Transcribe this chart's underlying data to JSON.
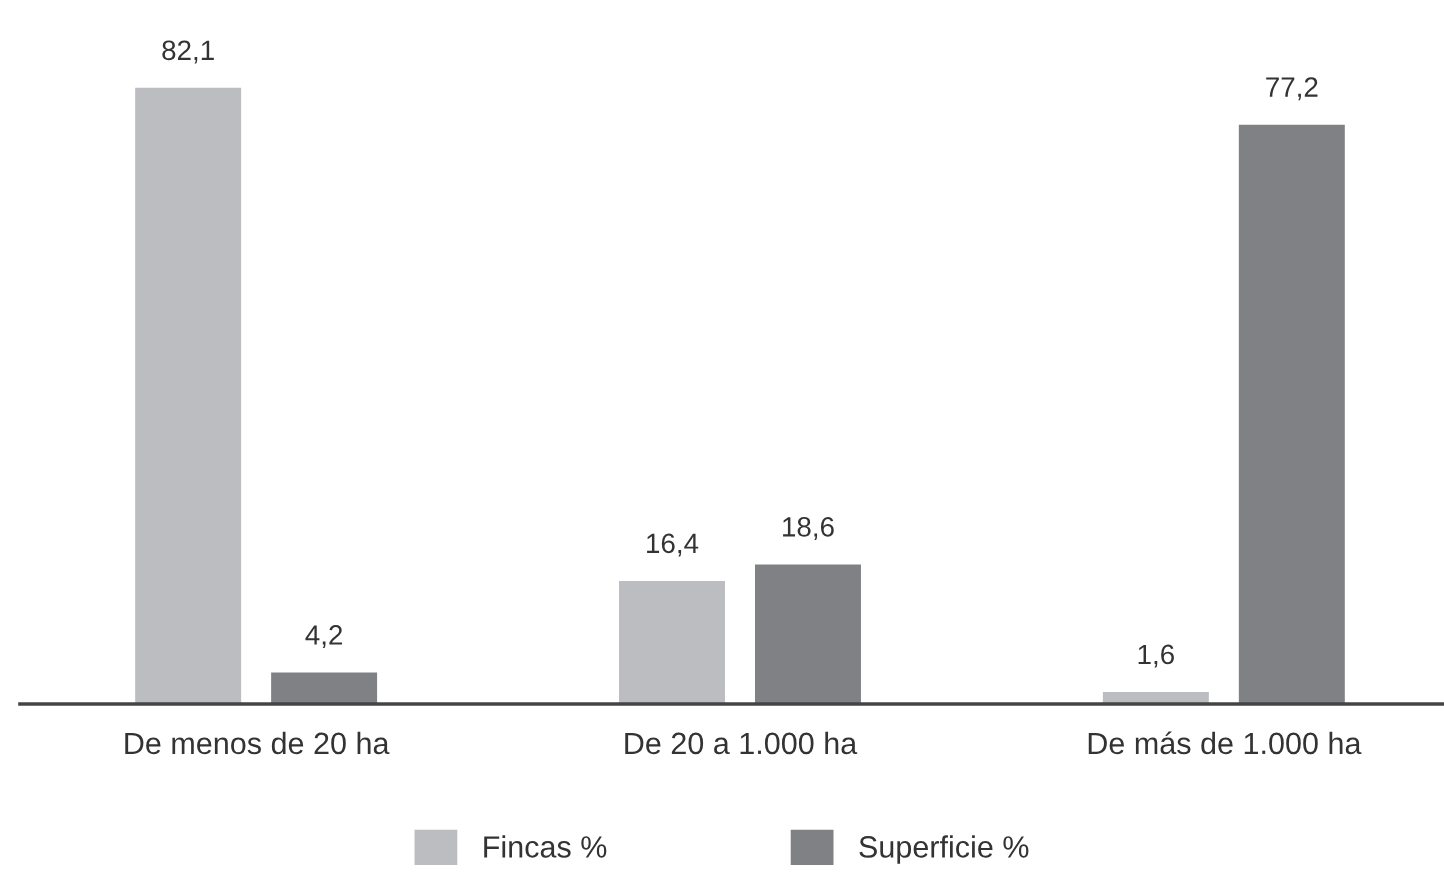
{
  "chart_data": {
    "type": "bar",
    "categories": [
      "De menos de 20 ha",
      "De 20 a 1.000 ha",
      "De más de 1.000 ha"
    ],
    "series": [
      {
        "name": "Fincas %",
        "color": "#bcbdc0",
        "values": [
          82.1,
          16.4,
          1.6
        ],
        "value_labels": [
          "82,1",
          "16,4",
          "1,6"
        ]
      },
      {
        "name": "Superficie %",
        "color": "#808185",
        "values": [
          4.2,
          18.6,
          77.2
        ],
        "value_labels": [
          "4,2",
          "18,6",
          "77,2"
        ]
      }
    ],
    "legend": "bottom",
    "grid": false
  }
}
